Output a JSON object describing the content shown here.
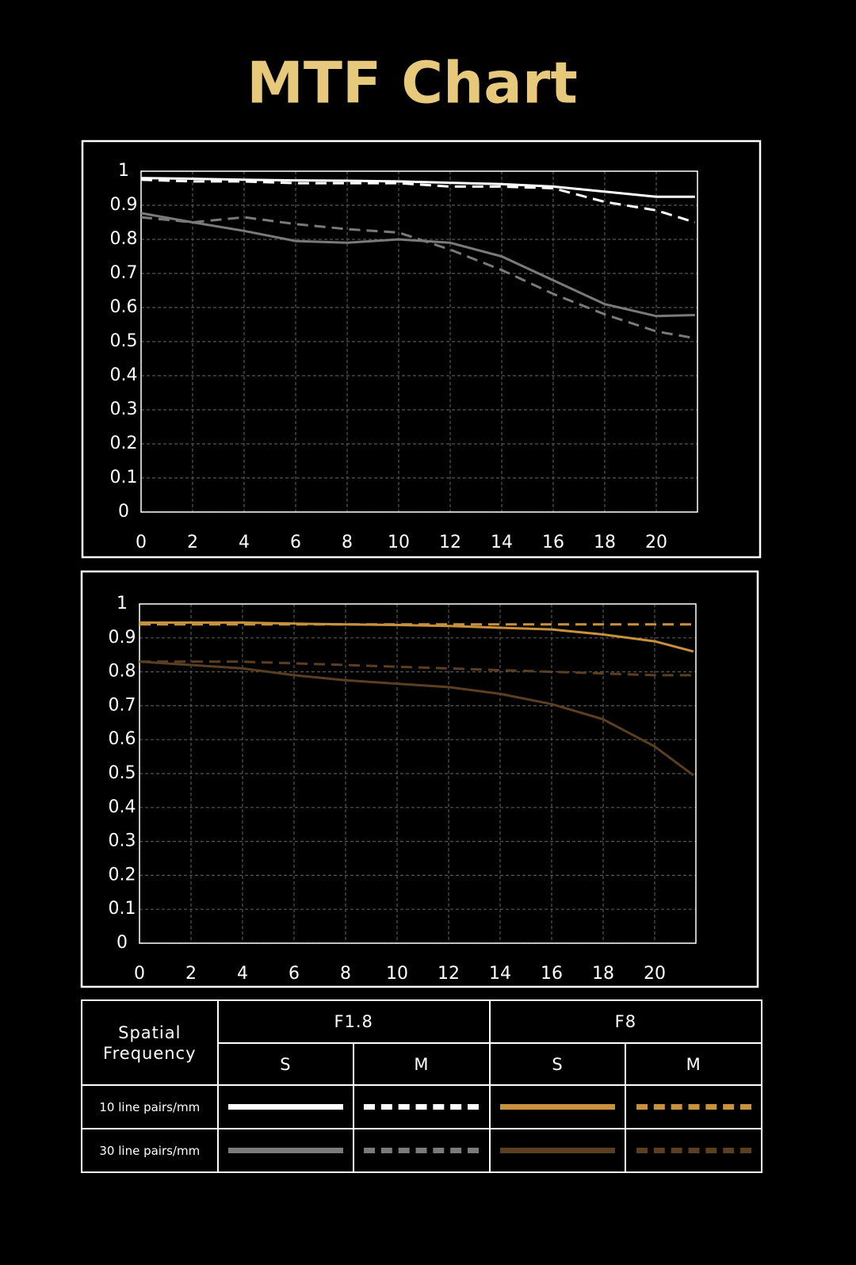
{
  "title": "MTF Chart",
  "chart_data": [
    {
      "type": "line",
      "xlim": [
        0,
        21.6
      ],
      "ylim": [
        0,
        1
      ],
      "xticks": [
        0,
        2,
        4,
        6,
        8,
        10,
        12,
        14,
        16,
        18,
        20
      ],
      "yticks": [
        0,
        0.1,
        0.2,
        0.3,
        0.4,
        0.5,
        0.6,
        0.7,
        0.8,
        0.9,
        1
      ],
      "grid": true,
      "x": [
        0,
        2,
        4,
        6,
        8,
        10,
        12,
        14,
        16,
        18,
        20,
        21.5
      ],
      "series": [
        {
          "color": "#ffffff",
          "dashed": false,
          "values": [
            0.98,
            0.978,
            0.975,
            0.973,
            0.972,
            0.97,
            0.966,
            0.962,
            0.955,
            0.94,
            0.925,
            0.925
          ]
        },
        {
          "color": "#ffffff",
          "dashed": true,
          "values": [
            0.975,
            0.97,
            0.97,
            0.965,
            0.965,
            0.965,
            0.955,
            0.955,
            0.95,
            0.91,
            0.885,
            0.85
          ]
        },
        {
          "color": "#7a7a7a",
          "dashed": false,
          "values": [
            0.877,
            0.85,
            0.825,
            0.795,
            0.79,
            0.8,
            0.79,
            0.75,
            0.68,
            0.61,
            0.575,
            0.578
          ]
        },
        {
          "color": "#7a7a7a",
          "dashed": true,
          "values": [
            0.865,
            0.85,
            0.865,
            0.845,
            0.83,
            0.82,
            0.77,
            0.71,
            0.64,
            0.58,
            0.53,
            0.51
          ]
        }
      ]
    },
    {
      "type": "line",
      "xlim": [
        0,
        21.6
      ],
      "ylim": [
        0,
        1
      ],
      "xticks": [
        0,
        2,
        4,
        6,
        8,
        10,
        12,
        14,
        16,
        18,
        20
      ],
      "yticks": [
        0,
        0.1,
        0.2,
        0.3,
        0.4,
        0.5,
        0.6,
        0.7,
        0.8,
        0.9,
        1
      ],
      "grid": true,
      "x": [
        0,
        2,
        4,
        6,
        8,
        10,
        12,
        14,
        16,
        18,
        20,
        21.5
      ],
      "series": [
        {
          "color": "#c8913e",
          "dashed": false,
          "values": [
            0.945,
            0.945,
            0.945,
            0.942,
            0.94,
            0.938,
            0.935,
            0.93,
            0.925,
            0.91,
            0.89,
            0.86
          ]
        },
        {
          "color": "#c8913e",
          "dashed": true,
          "values": [
            0.94,
            0.94,
            0.94,
            0.94,
            0.94,
            0.94,
            0.94,
            0.94,
            0.94,
            0.94,
            0.94,
            0.94
          ]
        },
        {
          "color": "#5c3f20",
          "dashed": false,
          "values": [
            0.83,
            0.82,
            0.81,
            0.79,
            0.775,
            0.765,
            0.755,
            0.735,
            0.705,
            0.66,
            0.58,
            0.495
          ]
        },
        {
          "color": "#5c3f20",
          "dashed": true,
          "values": [
            0.83,
            0.83,
            0.83,
            0.825,
            0.82,
            0.815,
            0.81,
            0.805,
            0.8,
            0.795,
            0.79,
            0.79
          ]
        }
      ]
    }
  ],
  "legend_table": {
    "header": "Spatial Frequency",
    "groups": [
      "F1.8",
      "F8"
    ],
    "subheaders": [
      "S",
      "M",
      "S",
      "M"
    ],
    "rows": [
      "10 line pairs/mm",
      "30 line pairs/mm"
    ]
  }
}
